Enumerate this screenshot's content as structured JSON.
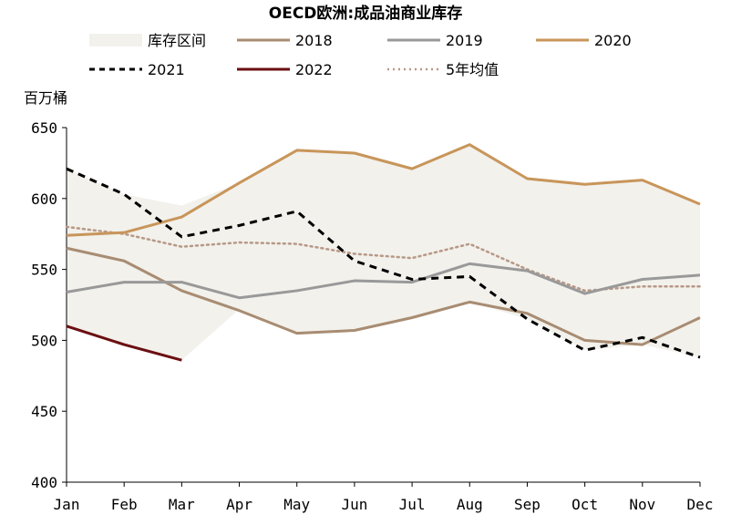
{
  "chart_data": {
    "type": "line",
    "title": "OECD欧洲:成品油商业库存",
    "unit_label": "百万桶",
    "categories": [
      "Jan",
      "Feb",
      "Mar",
      "Apr",
      "May",
      "Jun",
      "Jul",
      "Aug",
      "Sep",
      "Oct",
      "Nov",
      "Dec"
    ],
    "ylim": [
      400,
      650
    ],
    "yticks": [
      400,
      450,
      500,
      550,
      600,
      650
    ],
    "grid": false,
    "legend_position": "top",
    "range_band": {
      "name": "库存区间",
      "color": "#f2f1ec",
      "upper": [
        621,
        603,
        595,
        611,
        634,
        632,
        621,
        638,
        614,
        610,
        613,
        596
      ],
      "lower": [
        510,
        497,
        486,
        522,
        505,
        507,
        516,
        527,
        515,
        493,
        497,
        488
      ]
    },
    "series": [
      {
        "name": "2018",
        "color": "#a88c72",
        "style": "solid",
        "values": [
          565,
          556,
          535,
          521,
          505,
          507,
          516,
          527,
          519,
          500,
          497,
          516
        ]
      },
      {
        "name": "2019",
        "color": "#999999",
        "style": "solid",
        "values": [
          534,
          541,
          541,
          530,
          535,
          542,
          541,
          554,
          549,
          533,
          543,
          546
        ]
      },
      {
        "name": "2020",
        "color": "#c8955a",
        "style": "solid",
        "values": [
          574,
          576,
          587,
          611,
          634,
          632,
          621,
          638,
          614,
          610,
          613,
          596
        ]
      },
      {
        "name": "2021",
        "color": "#000000",
        "style": "dashed",
        "values": [
          621,
          603,
          573,
          581,
          591,
          556,
          543,
          545,
          515,
          493,
          502,
          488
        ]
      },
      {
        "name": "2022",
        "color": "#6b0f12",
        "style": "solid",
        "values": [
          510,
          497,
          486,
          null,
          null,
          null,
          null,
          null,
          null,
          null,
          null,
          null
        ]
      },
      {
        "name": "5年均值",
        "color": "#b89886",
        "style": "dotted",
        "values": [
          580,
          575,
          566,
          569,
          568,
          561,
          558,
          568,
          550,
          535,
          538,
          538
        ]
      }
    ]
  }
}
